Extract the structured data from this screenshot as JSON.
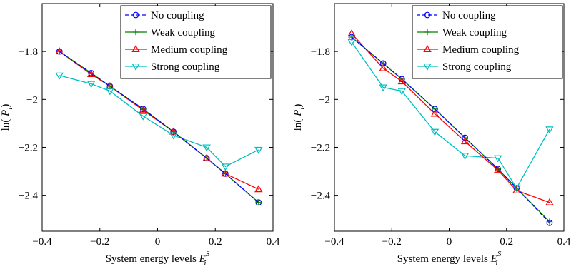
{
  "chart_data": [
    {
      "type": "line",
      "title": "",
      "xlabel": "System energy levels",
      "xlabel_symbol": "E",
      "xlabel_superscript": "S",
      "xlabel_subscript": "i",
      "ylabel_prefix": "ln(",
      "ylabel_symbol": "P",
      "ylabel_subscript": "i",
      "ylabel_suffix": ")",
      "xlim": [
        -0.4,
        0.4
      ],
      "ylim": [
        -2.55,
        -1.6
      ],
      "xticks": [
        -0.4,
        -0.2,
        0,
        0.2,
        0.4
      ],
      "xtick_labels": [
        "−0.4",
        "−0.2",
        "0",
        "0.2",
        "0.4"
      ],
      "yticks": [
        -2.4,
        -2.2,
        -2,
        -1.8
      ],
      "ytick_labels": [
        "−2.4",
        "−2.2",
        "−2",
        "−1.8"
      ],
      "grid": false,
      "legend_position": "top-right",
      "x": [
        -0.34,
        -0.23,
        -0.165,
        -0.05,
        0.055,
        0.17,
        0.235,
        0.35
      ],
      "series": [
        {
          "name": "No coupling",
          "color": "#0000ff",
          "marker": "circle",
          "linestyle": "dashed",
          "values": [
            -1.8,
            -1.89,
            -1.945,
            -2.04,
            -2.135,
            -2.245,
            -2.31,
            -2.43
          ]
        },
        {
          "name": "Weak coupling",
          "color": "#008000",
          "marker": "plus",
          "linestyle": "solid",
          "values": [
            -1.8,
            -1.89,
            -1.945,
            -2.04,
            -2.135,
            -2.245,
            -2.31,
            -2.43
          ]
        },
        {
          "name": "Medium coupling",
          "color": "#ff0000",
          "marker": "triangle-up",
          "linestyle": "solid",
          "values": [
            -1.8,
            -1.895,
            -1.945,
            -2.045,
            -2.135,
            -2.245,
            -2.31,
            -2.375
          ]
        },
        {
          "name": "Strong coupling",
          "color": "#00bfbf",
          "marker": "triangle-down",
          "linestyle": "solid",
          "values": [
            -1.9,
            -1.935,
            -1.965,
            -2.07,
            -2.15,
            -2.2,
            -2.28,
            -2.21
          ]
        }
      ]
    },
    {
      "type": "line",
      "title": "",
      "xlabel": "System energy levels",
      "xlabel_symbol": "E",
      "xlabel_superscript": "S",
      "xlabel_subscript": "i",
      "ylabel_prefix": "ln(",
      "ylabel_symbol": "P",
      "ylabel_subscript": "i",
      "ylabel_suffix": ")",
      "xlim": [
        -0.4,
        0.4
      ],
      "ylim": [
        -2.55,
        -1.6
      ],
      "xticks": [
        -0.4,
        -0.2,
        0,
        0.2,
        0.4
      ],
      "xtick_labels": [
        "−0.4",
        "−0.2",
        "0",
        "0.2",
        "0.4"
      ],
      "yticks": [
        -2.4,
        -2.2,
        -2,
        -1.8
      ],
      "ytick_labels": [
        "−2.4",
        "−2.2",
        "−2",
        "−1.8"
      ],
      "grid": false,
      "legend_position": "top-right",
      "x": [
        -0.34,
        -0.23,
        -0.165,
        -0.05,
        0.055,
        0.17,
        0.235,
        0.35
      ],
      "series": [
        {
          "name": "No coupling",
          "color": "#0000ff",
          "marker": "circle",
          "linestyle": "dashed",
          "values": [
            -1.74,
            -1.85,
            -1.915,
            -2.04,
            -2.16,
            -2.29,
            -2.37,
            -2.515
          ]
        },
        {
          "name": "Weak coupling",
          "color": "#008000",
          "marker": "plus",
          "linestyle": "solid",
          "values": [
            -1.74,
            -1.85,
            -1.915,
            -2.04,
            -2.16,
            -2.29,
            -2.37,
            -2.51
          ]
        },
        {
          "name": "Medium coupling",
          "color": "#ff0000",
          "marker": "triangle-up",
          "linestyle": "solid",
          "values": [
            -1.725,
            -1.87,
            -1.925,
            -2.06,
            -2.175,
            -2.295,
            -2.38,
            -2.43
          ]
        },
        {
          "name": "Strong coupling",
          "color": "#00bfbf",
          "marker": "triangle-down",
          "linestyle": "solid",
          "values": [
            -1.76,
            -1.95,
            -1.965,
            -2.135,
            -2.235,
            -2.245,
            -2.37,
            -2.125
          ]
        }
      ]
    }
  ]
}
